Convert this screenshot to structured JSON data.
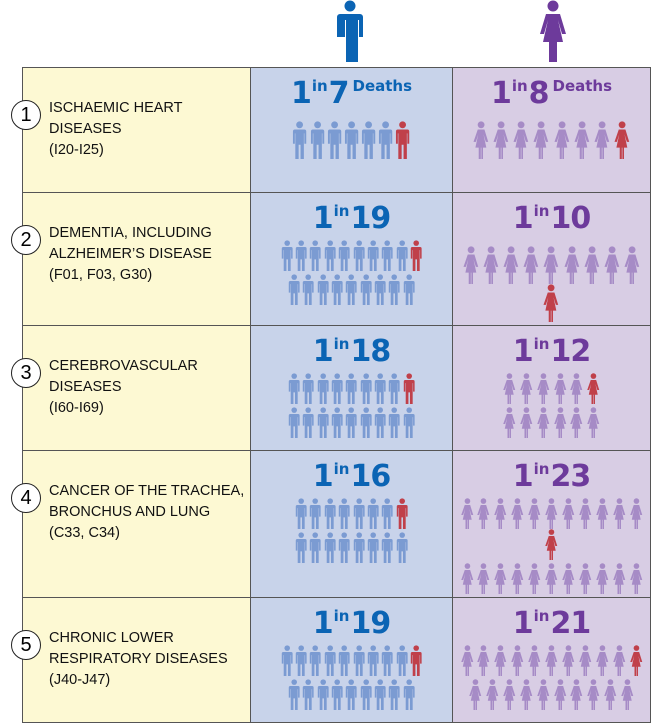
{
  "colors": {
    "male_text": "#0b64b4",
    "female_text": "#6d3a9b",
    "male_figure": "#7b9bd2",
    "female_figure": "#a68bc6",
    "highlight": "#c0404a",
    "male_header": "#0b64b4",
    "female_header": "#6d3a9b"
  },
  "header": {
    "male_icon": "man-icon",
    "female_icon": "woman-icon"
  },
  "chart_data": {
    "type": "table",
    "rows": [
      {
        "rank": "1",
        "cause": "ISCHAEMIC HEART DISEASES\n(I20-I25)",
        "male": {
          "one": "1",
          "in": "in",
          "n": 7,
          "n_label": "7",
          "suffix": "Deaths"
        },
        "female": {
          "one": "1",
          "in": "in",
          "n": 8,
          "n_label": "8",
          "suffix": "Deaths"
        }
      },
      {
        "rank": "2",
        "cause": "DEMENTIA, INCLUDING\nALZHEIMER’S DISEASE\n(F01, F03, G30)",
        "male": {
          "one": "1",
          "in": "in",
          "n": 19,
          "n_label": "19"
        },
        "female": {
          "one": "1",
          "in": "in",
          "n": 10,
          "n_label": "10"
        }
      },
      {
        "rank": "3",
        "cause": "CEREBROVASCULAR\nDISEASES\n(I60-I69)",
        "male": {
          "one": "1",
          "in": "in",
          "n": 18,
          "n_label": "18"
        },
        "female": {
          "one": "1",
          "in": "in",
          "n": 12,
          "n_label": "12"
        }
      },
      {
        "rank": "4",
        "cause": "CANCER OF THE TRACHEA,\nBRONCHUS AND LUNG\n(C33, C34)",
        "male": {
          "one": "1",
          "in": "in",
          "n": 16,
          "n_label": "16"
        },
        "female": {
          "one": "1",
          "in": "in",
          "n": 23,
          "n_label": "23"
        }
      },
      {
        "rank": "5",
        "cause": "CHRONIC LOWER\nRESPIRATORY DISEASES\n(J40-J47)",
        "male": {
          "one": "1",
          "in": "in",
          "n": 19,
          "n_label": "19"
        },
        "female": {
          "one": "1",
          "in": "in",
          "n": 21,
          "n_label": "21"
        }
      }
    ]
  }
}
